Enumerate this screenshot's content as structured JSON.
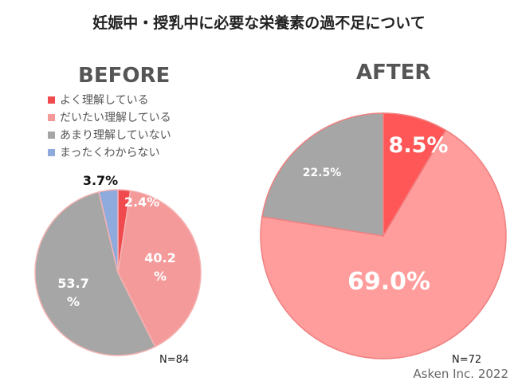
{
  "title": "妊娠中・授乳中に必要な栄養素の過不足について",
  "credit": "Asken Inc. 2022",
  "chart_data": [
    {
      "type": "pie",
      "label": "BEFORE",
      "n_label": "N=84",
      "categories": [
        "よく理解している",
        "だいたい理解している",
        "あまり理解していない",
        "まったくわからない"
      ],
      "values": [
        2.4,
        40.2,
        53.7,
        3.7
      ],
      "value_labels": [
        "2.4%",
        "40.2\n%",
        "53.7\n%",
        "3.7%"
      ],
      "colors": [
        "#f04a4e",
        "#f59a9a",
        "#a6a6a6",
        "#8faadc"
      ],
      "legend_placement": "top-left"
    },
    {
      "type": "pie",
      "label": "AFTER",
      "n_label": "N=72",
      "categories": [
        "よく理解している",
        "だいたい理解している",
        "あまり理解していない"
      ],
      "values": [
        8.5,
        69.0,
        22.5
      ],
      "value_labels": [
        "8.5%",
        "69.0%",
        "22.5%"
      ],
      "colors": [
        "#ff5757",
        "#ff9c9c",
        "#a6a6a6"
      ]
    }
  ]
}
